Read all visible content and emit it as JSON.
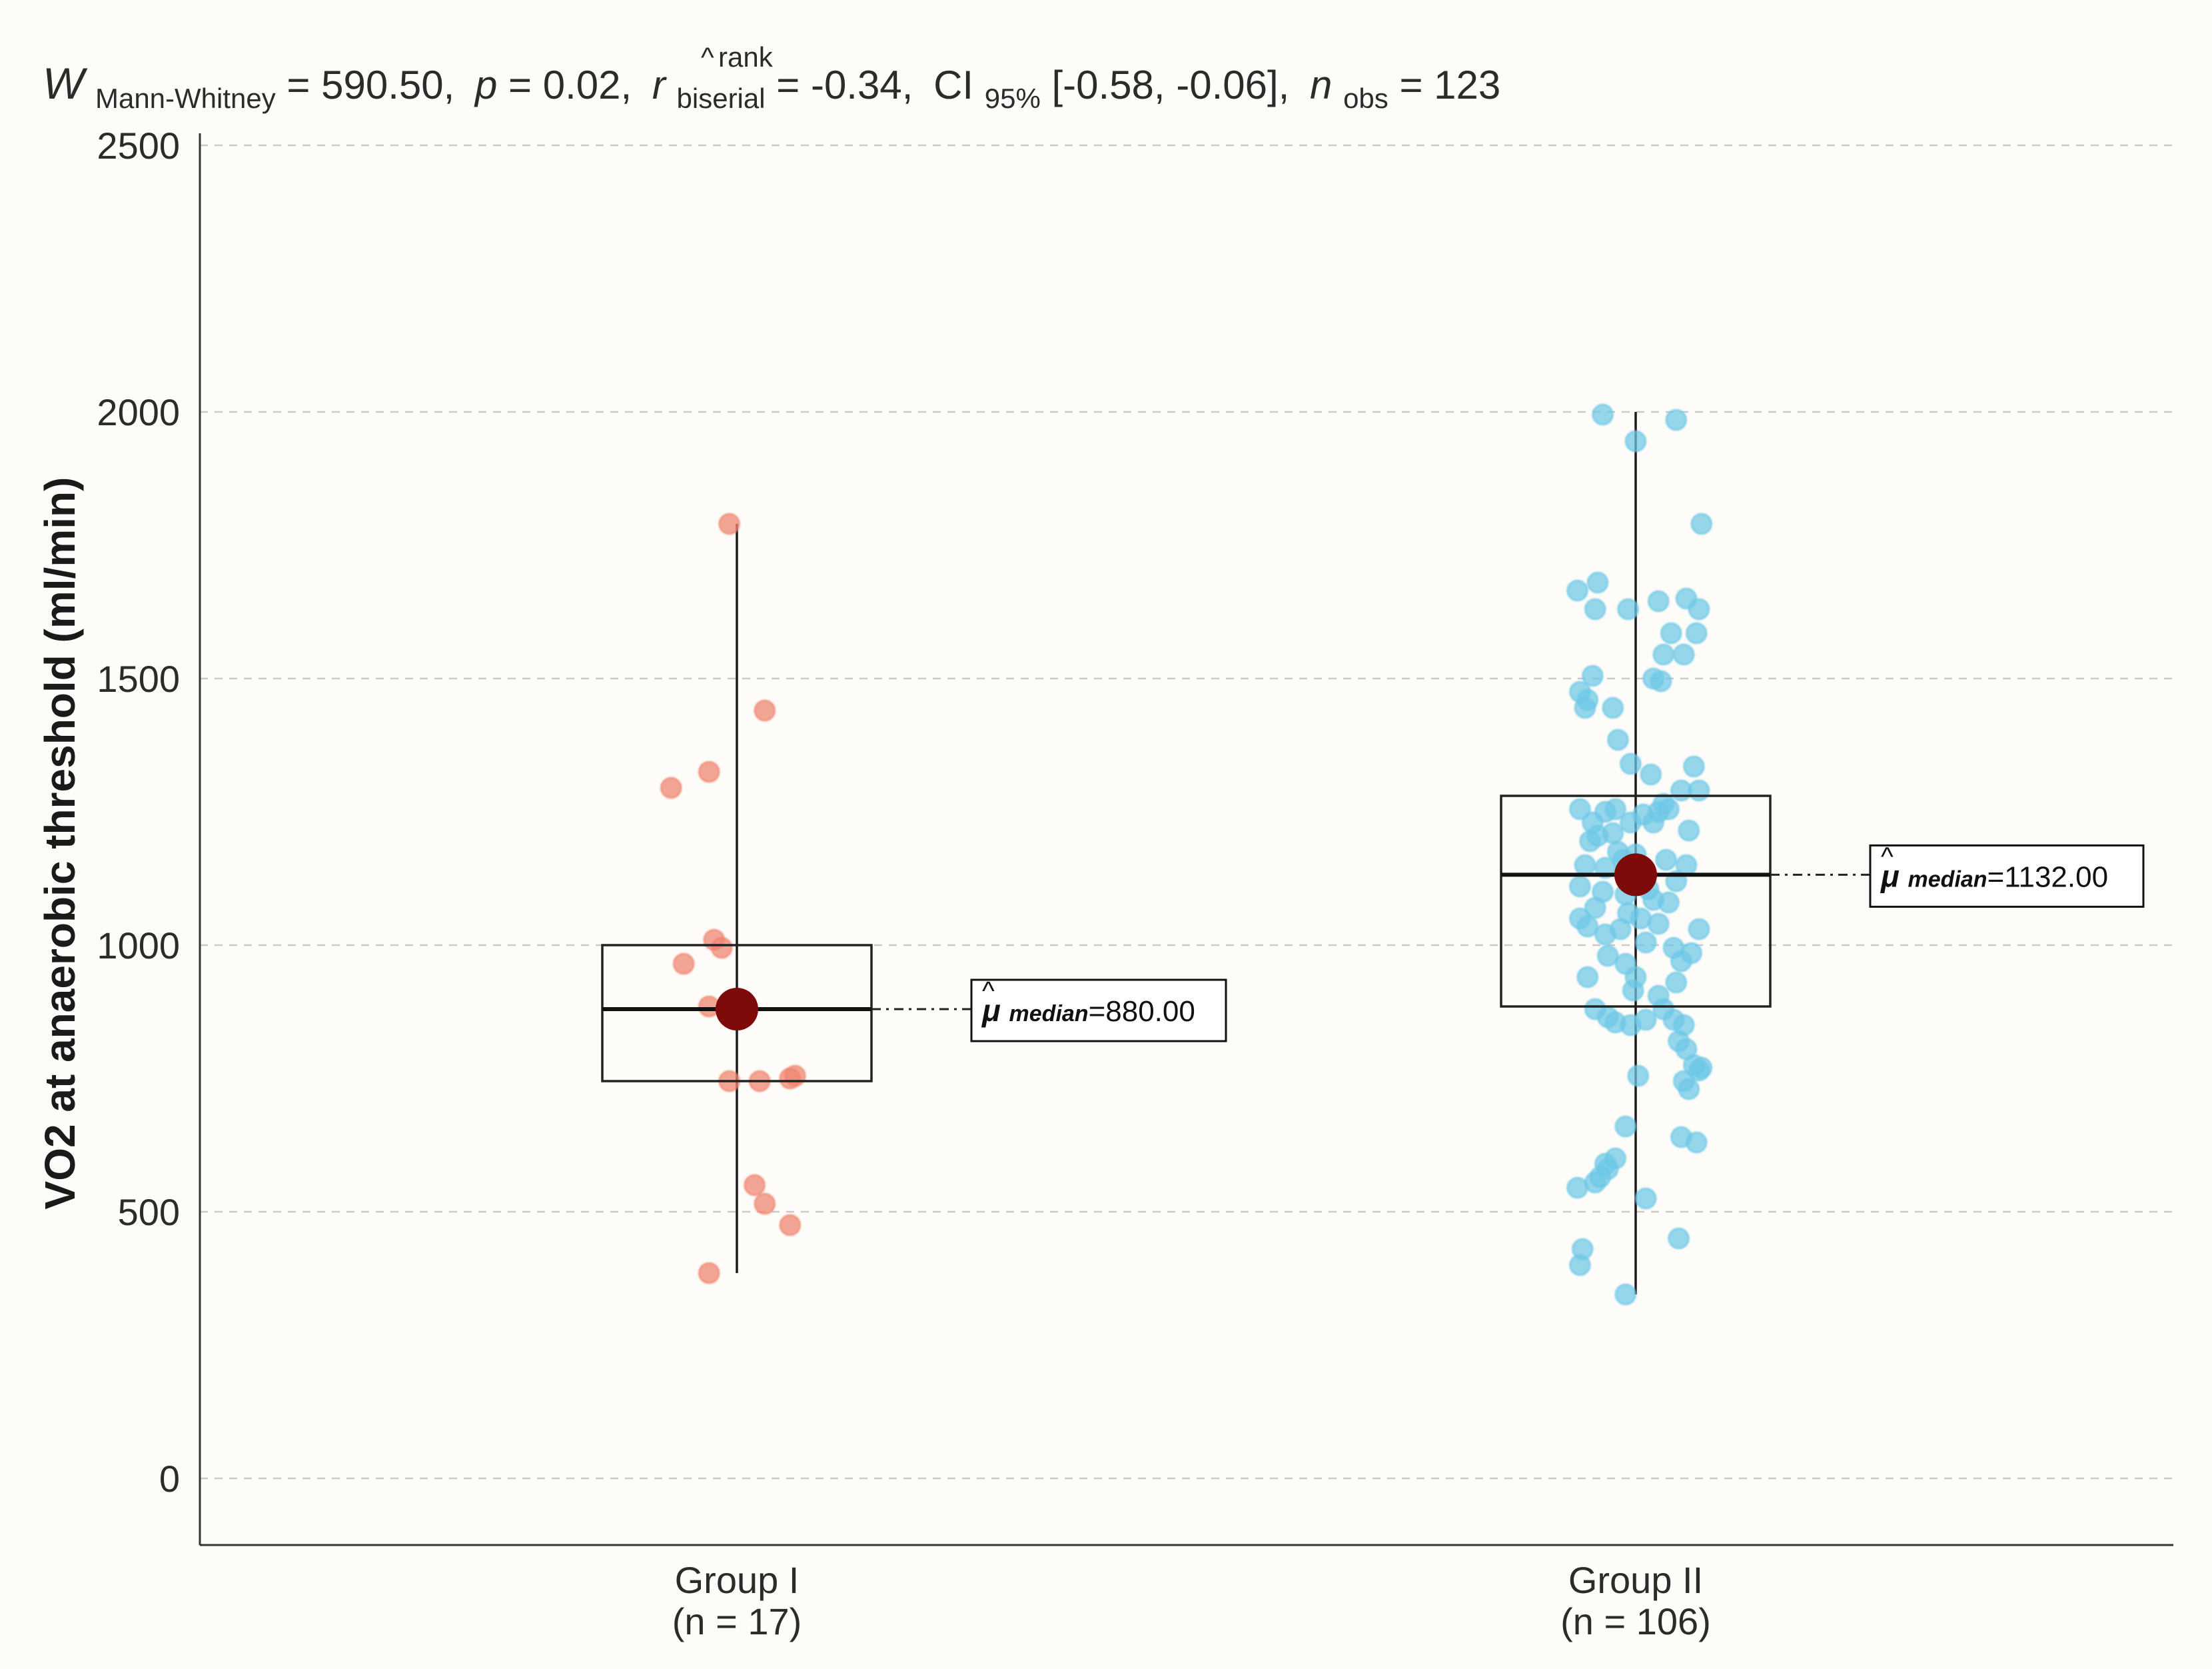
{
  "chart_data": {
    "type": "box-violin-scatter",
    "subtitle": {
      "w_symbol": "W",
      "w_sub": "Mann-Whitney",
      "w_value": " = 590.50,",
      "p_symbol": "p",
      "p_value": " = 0.02,",
      "r_hat": "^",
      "r_sup": "rank",
      "r_symbol": "r",
      "r_sub": "biserial",
      "r_value": " = -0.34,",
      "ci_symbol": "CI",
      "ci_sub": "95%",
      "ci_value": " [-0.58, -0.06],",
      "n_symbol": "n",
      "n_sub": "obs",
      "n_value": " = 123"
    },
    "ylabel": "VO2 at anaerobic threshold (ml/min)",
    "xlabel": "",
    "ylim": [
      -120,
      2500
    ],
    "yticks": [
      0,
      500,
      1000,
      1500,
      2000,
      2500
    ],
    "ytick_labels": [
      "0",
      "500",
      "1000",
      "1500",
      "2000",
      "2500"
    ],
    "grid": "horizontal dashed",
    "colors": {
      "group1": "#f0846f",
      "group2": "#6ec8e6",
      "median_point": "#7f0a0a",
      "box": "#222222",
      "grid": "#c9c9c9",
      "axis": "#333333"
    },
    "groups": [
      {
        "name": "Group I",
        "n_label": "(n = 17)",
        "median": 880,
        "median_label_prefix": "μ",
        "median_label_word": "median",
        "median_label_value": "=880.00",
        "q1": 745,
        "q3": 1000,
        "whisker_low": 385,
        "whisker_high": 1790,
        "points": [
          [
            -0.03,
            1790
          ],
          [
            0.11,
            1440
          ],
          [
            -0.26,
            1295
          ],
          [
            -0.11,
            1325
          ],
          [
            -0.09,
            1010
          ],
          [
            -0.06,
            995
          ],
          [
            -0.21,
            965
          ],
          [
            -0.11,
            885
          ],
          [
            0.01,
            880
          ],
          [
            -0.03,
            745
          ],
          [
            0.09,
            745
          ],
          [
            0.21,
            750
          ],
          [
            0.23,
            755
          ],
          [
            0.07,
            550
          ],
          [
            0.11,
            515
          ],
          [
            0.21,
            475
          ],
          [
            -0.11,
            385
          ]
        ]
      },
      {
        "name": "Group II",
        "n_label": "(n = 106)",
        "median": 1132,
        "median_label_prefix": "μ",
        "median_label_word": "median",
        "median_label_value": "=1132.00",
        "q1": 885,
        "q3": 1280,
        "whisker_low": 345,
        "whisker_high": 2000,
        "points": [
          [
            -0.13,
            1995
          ],
          [
            0.16,
            1985
          ],
          [
            0.0,
            1945
          ],
          [
            0.26,
            1790
          ],
          [
            -0.23,
            1665
          ],
          [
            -0.15,
            1680
          ],
          [
            -0.16,
            1630
          ],
          [
            -0.03,
            1630
          ],
          [
            0.09,
            1645
          ],
          [
            0.2,
            1650
          ],
          [
            0.25,
            1630
          ],
          [
            0.14,
            1585
          ],
          [
            0.24,
            1585
          ],
          [
            0.11,
            1545
          ],
          [
            0.19,
            1545
          ],
          [
            -0.22,
            1475
          ],
          [
            -0.19,
            1460
          ],
          [
            -0.17,
            1505
          ],
          [
            -0.2,
            1445
          ],
          [
            0.07,
            1500
          ],
          [
            0.1,
            1495
          ],
          [
            -0.09,
            1445
          ],
          [
            -0.07,
            1385
          ],
          [
            -0.02,
            1340
          ],
          [
            0.06,
            1320
          ],
          [
            0.23,
            1335
          ],
          [
            0.18,
            1290
          ],
          [
            0.25,
            1290
          ],
          [
            -0.22,
            1255
          ],
          [
            -0.12,
            1250
          ],
          [
            -0.08,
            1255
          ],
          [
            -0.15,
            1205
          ],
          [
            -0.18,
            1195
          ],
          [
            -0.09,
            1210
          ],
          [
            -0.02,
            1230
          ],
          [
            0.03,
            1245
          ],
          [
            0.09,
            1250
          ],
          [
            0.13,
            1255
          ],
          [
            0.07,
            1230
          ],
          [
            -0.2,
            1150
          ],
          [
            -0.12,
            1145
          ],
          [
            -0.05,
            1160
          ],
          [
            0.0,
            1170
          ],
          [
            0.12,
            1160
          ],
          [
            0.2,
            1150
          ],
          [
            -0.22,
            1110
          ],
          [
            -0.13,
            1100
          ],
          [
            -0.04,
            1095
          ],
          [
            0.05,
            1105
          ],
          [
            0.16,
            1120
          ],
          [
            -0.16,
            1070
          ],
          [
            0.07,
            1085
          ],
          [
            0.13,
            1080
          ],
          [
            -0.22,
            1050
          ],
          [
            -0.19,
            1035
          ],
          [
            -0.12,
            1020
          ],
          [
            -0.06,
            1030
          ],
          [
            -0.03,
            1060
          ],
          [
            0.02,
            1050
          ],
          [
            0.09,
            1040
          ],
          [
            0.25,
            1030
          ],
          [
            0.15,
            995
          ],
          [
            0.22,
            985
          ],
          [
            0.18,
            970
          ],
          [
            -0.11,
            980
          ],
          [
            -0.04,
            965
          ],
          [
            0.0,
            940
          ],
          [
            -0.19,
            940
          ],
          [
            -0.01,
            915
          ],
          [
            0.16,
            930
          ],
          [
            -0.16,
            880
          ],
          [
            -0.11,
            865
          ],
          [
            -0.08,
            855
          ],
          [
            -0.02,
            850
          ],
          [
            0.04,
            860
          ],
          [
            0.11,
            880
          ],
          [
            0.15,
            860
          ],
          [
            0.19,
            850
          ],
          [
            0.17,
            820
          ],
          [
            0.2,
            805
          ],
          [
            0.23,
            775
          ],
          [
            0.25,
            765
          ],
          [
            0.26,
            770
          ],
          [
            0.19,
            745
          ],
          [
            0.21,
            730
          ],
          [
            0.01,
            755
          ],
          [
            -0.04,
            660
          ],
          [
            0.18,
            640
          ],
          [
            0.24,
            630
          ],
          [
            -0.08,
            600
          ],
          [
            -0.11,
            580
          ],
          [
            -0.14,
            565
          ],
          [
            -0.16,
            555
          ],
          [
            -0.23,
            545
          ],
          [
            -0.12,
            590
          ],
          [
            0.04,
            525
          ],
          [
            0.17,
            450
          ],
          [
            -0.21,
            430
          ],
          [
            -0.22,
            400
          ],
          [
            -0.04,
            345
          ],
          [
            -0.17,
            1230
          ],
          [
            0.11,
            1265
          ],
          [
            0.21,
            1215
          ],
          [
            -0.07,
            1175
          ],
          [
            0.04,
            1005
          ],
          [
            0.09,
            905
          ]
        ]
      }
    ]
  }
}
